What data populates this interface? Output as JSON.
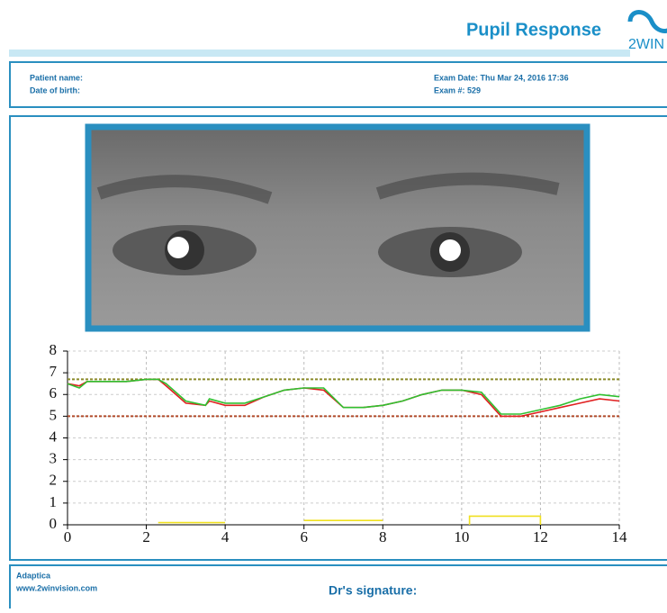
{
  "header": {
    "title": "Pupil Response",
    "logo": "2WIN"
  },
  "info": {
    "patient_name": "Patient name:",
    "date_of_birth": "Date of birth:",
    "exam_date": "Exam Date: Thu Mar 24, 2016  17:36",
    "exam_number": "Exam #: 529"
  },
  "footer": {
    "company": "Adaptica",
    "website": "www.2winvision.com",
    "signature": "Dr's signature:"
  },
  "chart_data": {
    "type": "line",
    "xlim": [
      0,
      14
    ],
    "ylim": [
      0,
      8
    ],
    "xticks": [
      0,
      2,
      4,
      6,
      8,
      10,
      12,
      14
    ],
    "yticks": [
      0,
      1,
      2,
      3,
      4,
      5,
      6,
      7,
      8
    ],
    "grid": true,
    "reference_lines": [
      {
        "value": 6.7,
        "color": "#8a8a2a"
      },
      {
        "value": 5.0,
        "color": "#b04a2a"
      }
    ],
    "series": [
      {
        "color": "#e02020",
        "x": [
          0,
          0.3,
          0.5,
          1,
          1.5,
          2,
          2.3,
          2.5,
          3,
          3.5,
          3.6,
          4,
          4.5,
          5,
          5.5,
          6,
          6.5,
          7,
          7.5,
          8,
          8.5,
          9,
          9.5,
          10,
          10.5,
          11,
          11.5,
          12,
          12.5,
          13,
          13.5,
          14
        ],
        "values": [
          6.5,
          6.4,
          6.6,
          6.6,
          6.6,
          6.7,
          6.7,
          6.4,
          5.6,
          5.5,
          5.7,
          5.5,
          5.5,
          5.9,
          6.2,
          6.3,
          6.2,
          5.4,
          5.4,
          5.5,
          5.7,
          6.0,
          6.2,
          6.2,
          6.0,
          5.0,
          5.0,
          5.2,
          5.4,
          5.6,
          5.8,
          5.7
        ]
      },
      {
        "color": "#30c030",
        "x": [
          0,
          0.3,
          0.5,
          1,
          1.5,
          2,
          2.3,
          2.5,
          3,
          3.5,
          3.6,
          4,
          4.5,
          5,
          5.5,
          6,
          6.5,
          7,
          7.5,
          8,
          8.5,
          9,
          9.5,
          10,
          10.5,
          11,
          11.5,
          12,
          12.5,
          13,
          13.5,
          14
        ],
        "values": [
          6.5,
          6.3,
          6.6,
          6.6,
          6.6,
          6.7,
          6.7,
          6.5,
          5.7,
          5.5,
          5.8,
          5.6,
          5.6,
          5.9,
          6.2,
          6.3,
          6.3,
          5.4,
          5.4,
          5.5,
          5.7,
          6.0,
          6.2,
          6.2,
          6.1,
          5.1,
          5.1,
          5.3,
          5.5,
          5.8,
          6.0,
          5.9
        ]
      },
      {
        "color": "#f0e020",
        "x": [
          2.3,
          4.0,
          4.0,
          6.0,
          8.0,
          8.0,
          10.2,
          10.2,
          12.0,
          12.0
        ],
        "values": [
          0.1,
          0.1,
          null,
          0.2,
          0.2,
          null,
          0,
          0.4,
          0.4,
          0
        ]
      }
    ]
  }
}
